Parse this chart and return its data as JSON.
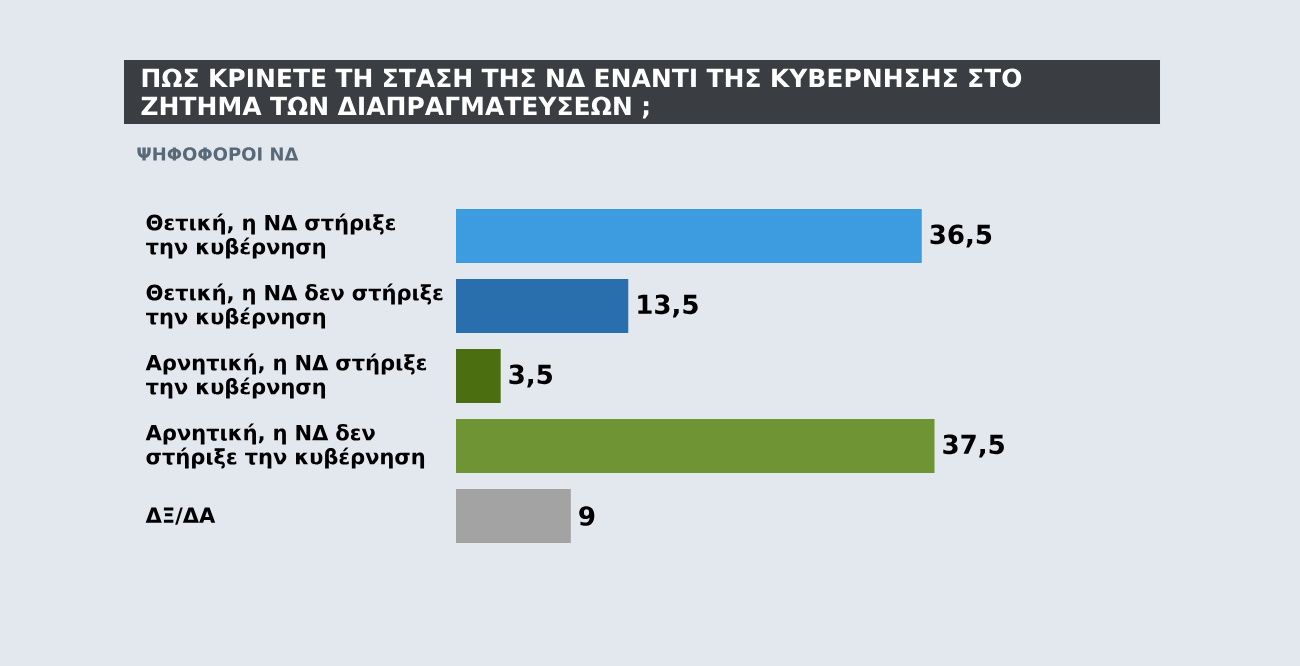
{
  "chart_data": {
    "type": "bar",
    "orientation": "horizontal",
    "title": "ΠΩΣ ΚΡΙΝΕΤΕ ΤΗ ΣΤΑΣΗ ΤΗΣ ΝΔ ΕΝΑΝΤΙ ΤΗΣ ΚΥΒΕΡΝΗΣΗΣ ΣΤΟ ΖΗΤΗΜΑ ΤΩΝ ΔΙΑΠΡΑΓΜΑΤΕΥΣΕΩΝ ;",
    "subtitle": "ΨΗΦΟΦΟΡΟΙ ΝΔ",
    "categories": [
      "Θετική, η ΝΔ στήριξε την κυβέρνηση",
      "Θετική, η ΝΔ δεν στήριξε την κυβέρνηση",
      "Αρνητική, η ΝΔ στήριξε την κυβέρνηση",
      "Αρνητική, η ΝΔ δεν στήριξε την κυβέρνηση",
      "ΔΞ/ΔΑ"
    ],
    "values": [
      36.5,
      13.5,
      3.5,
      37.5,
      9
    ],
    "value_labels": [
      "36,5",
      "13,5",
      "3,5",
      "37,5",
      "9"
    ],
    "colors": [
      "#3d9be0",
      "#2a6fad",
      "#4a6e10",
      "#6f9434",
      "#a3a3a3"
    ]
  }
}
